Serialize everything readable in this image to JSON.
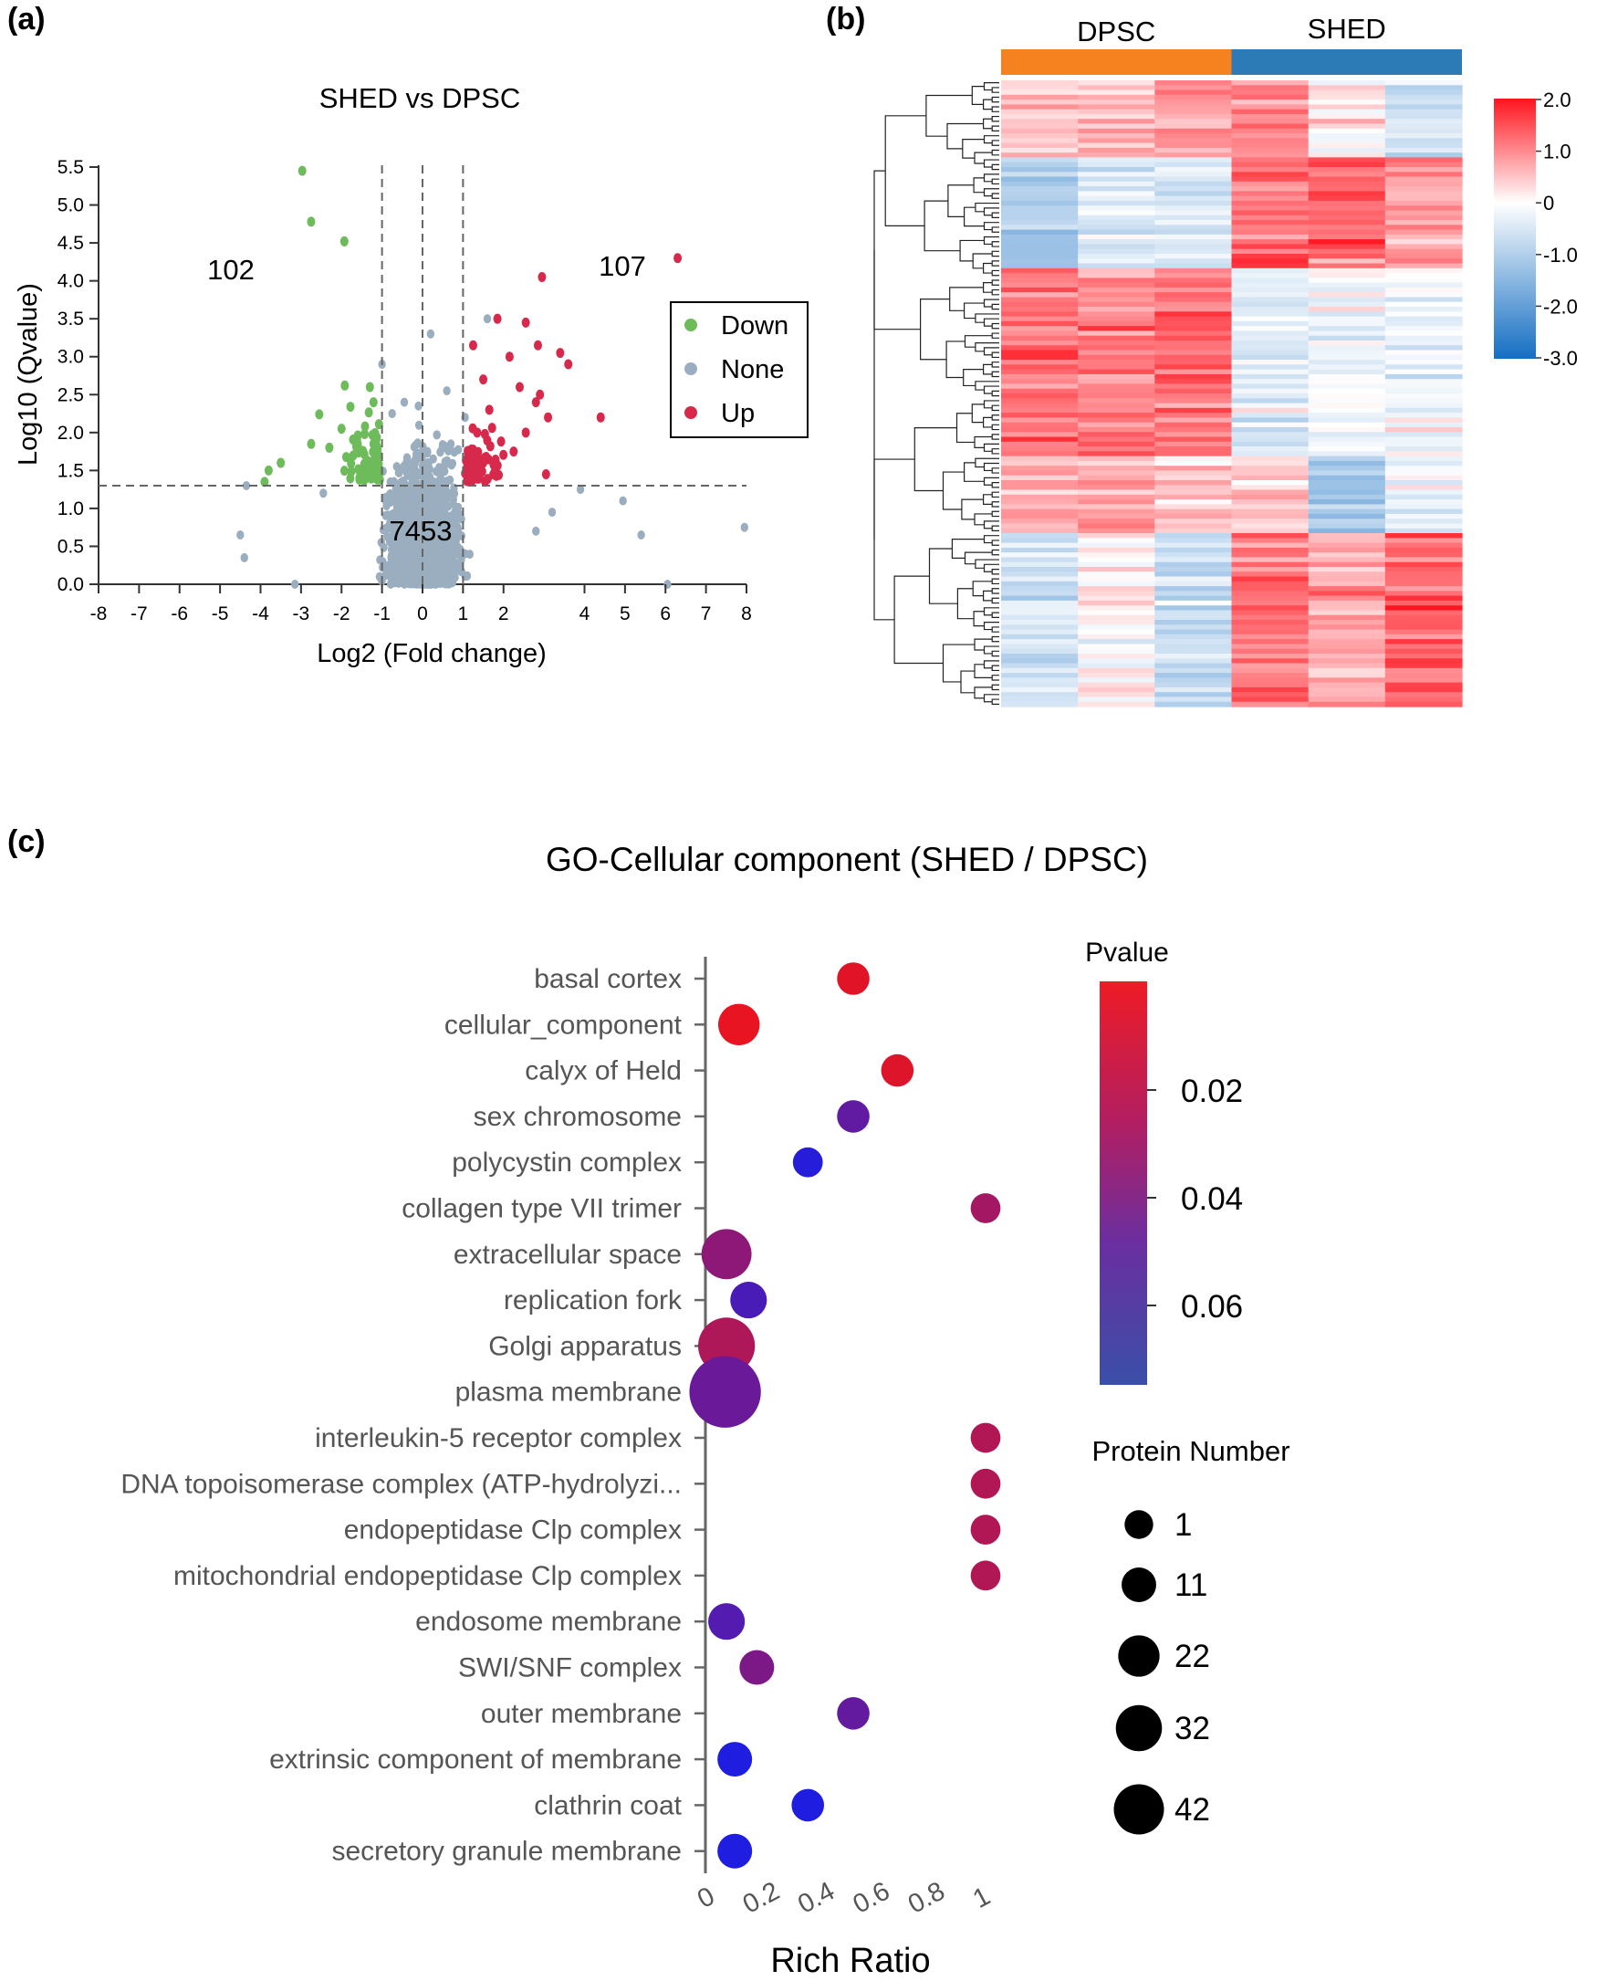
{
  "panels": {
    "a": "(a)",
    "b": "(b)",
    "c": "(c)"
  },
  "colors": {
    "down": "#6dbb5a",
    "none": "#9aaebf",
    "up": "#d7294c",
    "dpsc_bar": "#f5821f",
    "shed_bar": "#2c7bb6"
  },
  "chart_data": [
    {
      "type": "scatter",
      "panel": "a",
      "title": "SHED vs DPSC",
      "xlabel": "Log2 (Fold change)",
      "ylabel": "Log10 (Qvalue)",
      "xlim": [
        -8,
        8
      ],
      "ylim": [
        0,
        5.5
      ],
      "xticks": [
        "-8",
        "-7",
        "-6",
        "-5",
        "-4",
        "-3",
        "-2",
        "-1",
        "0",
        "1",
        "2",
        "4",
        "5",
        "6",
        "7",
        "8"
      ],
      "yticks": [
        "0.0",
        "0.5",
        "1.0",
        "1.5",
        "2.0",
        "2.5",
        "3.0",
        "3.5",
        "4.0",
        "4.5",
        "5.0",
        "5.5"
      ],
      "thresholds": {
        "fold_change": [
          -1,
          1
        ],
        "center": 0,
        "qvalue": 1.3
      },
      "counts": {
        "down": "102",
        "up": "107",
        "none": "7453"
      },
      "legend": [
        {
          "key": "down",
          "label": "Down"
        },
        {
          "key": "none",
          "label": "None"
        },
        {
          "key": "up",
          "label": "Up"
        }
      ],
      "series": {
        "down": [
          [
            -2.97,
            5.45
          ],
          [
            -2.75,
            4.78
          ],
          [
            -1.93,
            4.52
          ],
          [
            -1.92,
            2.62
          ],
          [
            -1.21,
            2.4
          ],
          [
            -2.55,
            2.24
          ],
          [
            -1.78,
            2.34
          ],
          [
            -2.0,
            2.05
          ],
          [
            -1.42,
            2.08
          ],
          [
            -3.5,
            1.6
          ],
          [
            -3.8,
            1.5
          ],
          [
            -3.9,
            1.35
          ],
          [
            -2.3,
            1.8
          ],
          [
            -1.55,
            1.75
          ],
          [
            -1.15,
            1.55
          ],
          [
            -2.75,
            1.85
          ],
          [
            -1.3,
            2.6
          ]
        ],
        "up": [
          [
            6.3,
            4.3
          ],
          [
            2.95,
            4.05
          ],
          [
            4.4,
            2.2
          ],
          [
            1.85,
            3.5
          ],
          [
            2.55,
            3.45
          ],
          [
            2.85,
            3.15
          ],
          [
            3.4,
            3.05
          ],
          [
            2.15,
            3.0
          ],
          [
            1.5,
            2.7
          ],
          [
            2.4,
            2.6
          ],
          [
            2.8,
            2.4
          ],
          [
            1.65,
            2.3
          ],
          [
            3.1,
            2.2
          ],
          [
            2.55,
            2.0
          ],
          [
            1.35,
            2.0
          ],
          [
            2.25,
            1.75
          ],
          [
            1.15,
            1.55
          ],
          [
            1.75,
            1.45
          ],
          [
            3.05,
            1.45
          ],
          [
            1.25,
            3.15
          ],
          [
            3.6,
            2.9
          ],
          [
            2.9,
            2.5
          ]
        ],
        "none": [
          [
            -4.5,
            0.65
          ],
          [
            -4.35,
            1.3
          ],
          [
            -4.4,
            0.35
          ],
          [
            -2.45,
            1.2
          ],
          [
            -3.15,
            0.0
          ],
          [
            1.6,
            3.5
          ],
          [
            0.2,
            3.3
          ],
          [
            -0.45,
            2.4
          ],
          [
            0.6,
            2.55
          ],
          [
            -0.75,
            2.25
          ],
          [
            3.9,
            1.25
          ],
          [
            4.95,
            1.1
          ],
          [
            5.4,
            0.65
          ],
          [
            7.95,
            0.75
          ],
          [
            6.05,
            0.0
          ],
          [
            2.8,
            0.7
          ],
          [
            3.2,
            0.95
          ],
          [
            -1.0,
            2.9
          ],
          [
            -0.1,
            2.35
          ],
          [
            0.7,
            1.85
          ],
          [
            -0.35,
            1.6
          ],
          [
            1.05,
            2.2
          ]
        ]
      }
    },
    {
      "type": "heatmap",
      "panel": "b",
      "groups": [
        "DPSC",
        "SHED"
      ],
      "columns": 6,
      "colorbar_ticks": [
        "2.0",
        "1.0",
        "0",
        "-1.0",
        "-2.0",
        "-3.0"
      ],
      "colorbar_range": [
        -3.0,
        2.0
      ]
    },
    {
      "type": "scatter",
      "panel": "c",
      "title": "GO-Cellular component (SHED / DPSC)",
      "xlabel": "Rich Ratio",
      "xlim": [
        0,
        1
      ],
      "xticks": [
        "0",
        "0.2",
        "0.4",
        "0.6",
        "0.8",
        "1"
      ],
      "colorbar_title": "Pvalue",
      "colorbar_ticks": [
        "0.02",
        "0.04",
        "0.06"
      ],
      "size_legend_title": "Protein Number",
      "size_legend": [
        1,
        11,
        22,
        32,
        42
      ],
      "terms": [
        {
          "label": "basal cortex",
          "ratio": 0.52,
          "pvalue": 0.008,
          "count": 3
        },
        {
          "label": "cellular_component",
          "ratio": 0.105,
          "pvalue": 0.006,
          "count": 8
        },
        {
          "label": "calyx of Held",
          "ratio": 0.68,
          "pvalue": 0.009,
          "count": 3
        },
        {
          "label": "sex chromosome",
          "ratio": 0.52,
          "pvalue": 0.048,
          "count": 3
        },
        {
          "label": "polycystin complex",
          "ratio": 0.355,
          "pvalue": 0.066,
          "count": 2
        },
        {
          "label": "collagen type VII trimer",
          "ratio": 1.0,
          "pvalue": 0.027,
          "count": 2
        },
        {
          "label": "extracellular space",
          "ratio": 0.06,
          "pvalue": 0.034,
          "count": 15
        },
        {
          "label": "replication fork",
          "ratio": 0.14,
          "pvalue": 0.055,
          "count": 5
        },
        {
          "label": "Golgi apparatus",
          "ratio": 0.06,
          "pvalue": 0.024,
          "count": 22
        },
        {
          "label": "plasma membrane",
          "ratio": 0.055,
          "pvalue": 0.045,
          "count": 42
        },
        {
          "label": "interleukin-5 receptor complex",
          "ratio": 1.0,
          "pvalue": 0.023,
          "count": 2
        },
        {
          "label": "DNA topoisomerase complex (ATP-hydrolyzi...",
          "ratio": 1.0,
          "pvalue": 0.023,
          "count": 2
        },
        {
          "label": "endopeptidase Clp complex",
          "ratio": 1.0,
          "pvalue": 0.023,
          "count": 2
        },
        {
          "label": "mitochondrial endopeptidase Clp complex",
          "ratio": 1.0,
          "pvalue": 0.023,
          "count": 2
        },
        {
          "label": "endosome membrane",
          "ratio": 0.06,
          "pvalue": 0.052,
          "count": 5
        },
        {
          "label": "SWI/SNF complex",
          "ratio": 0.17,
          "pvalue": 0.039,
          "count": 4
        },
        {
          "label": "outer membrane",
          "ratio": 0.52,
          "pvalue": 0.047,
          "count": 3
        },
        {
          "label": "extrinsic component of membrane",
          "ratio": 0.09,
          "pvalue": 0.068,
          "count": 4
        },
        {
          "label": "clathrin coat",
          "ratio": 0.355,
          "pvalue": 0.068,
          "count": 3
        },
        {
          "label": "secretory granule membrane",
          "ratio": 0.09,
          "pvalue": 0.068,
          "count": 4
        }
      ]
    }
  ]
}
